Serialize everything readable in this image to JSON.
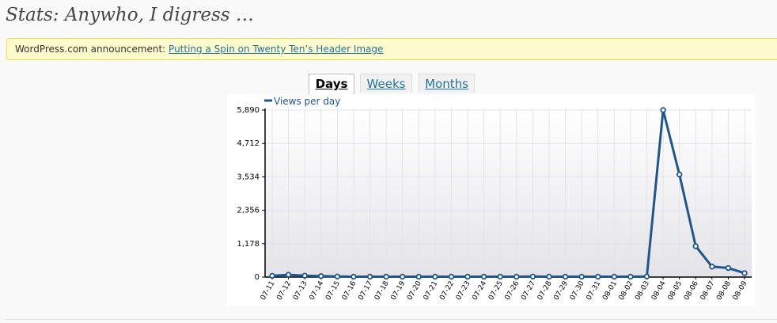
{
  "page": {
    "title": "Stats: Anywho, I digress …"
  },
  "announcement": {
    "prefix": "WordPress.com announcement:",
    "link_text": "Putting a Spin on Twenty Ten’s Header Image"
  },
  "tabs": [
    {
      "label": "Days",
      "active": true
    },
    {
      "label": "Weeks",
      "active": false
    },
    {
      "label": "Months",
      "active": false
    }
  ],
  "colors": {
    "series": "#21568a",
    "title": "#464646",
    "link": "#21759b",
    "notice_bg": "#fffbcc"
  },
  "chart_data": {
    "type": "line",
    "legend": "Views per day",
    "legend_position": "top-left",
    "grid": true,
    "yticks": [
      "5,890",
      "4,712",
      "3,534",
      "2,356",
      "1,178",
      "0"
    ],
    "ylim": [
      0,
      5890
    ],
    "x": [
      "07-11",
      "07-12",
      "07-13",
      "07-14",
      "07-15",
      "07-16",
      "07-17",
      "07-18",
      "07-19",
      "07-20",
      "07-21",
      "07-22",
      "07-23",
      "07-24",
      "07-25",
      "07-26",
      "07-27",
      "07-28",
      "07-29",
      "07-30",
      "07-31",
      "08-01",
      "08-02",
      "08-03",
      "08-04",
      "08-05",
      "08-06",
      "08-07",
      "08-08",
      "08-09"
    ],
    "series": [
      {
        "name": "Views per day",
        "values": [
          45,
          80,
          50,
          35,
          20,
          15,
          15,
          15,
          15,
          15,
          15,
          15,
          15,
          15,
          15,
          15,
          20,
          15,
          15,
          15,
          15,
          15,
          15,
          20,
          5890,
          3620,
          1090,
          370,
          320,
          140
        ]
      }
    ]
  }
}
